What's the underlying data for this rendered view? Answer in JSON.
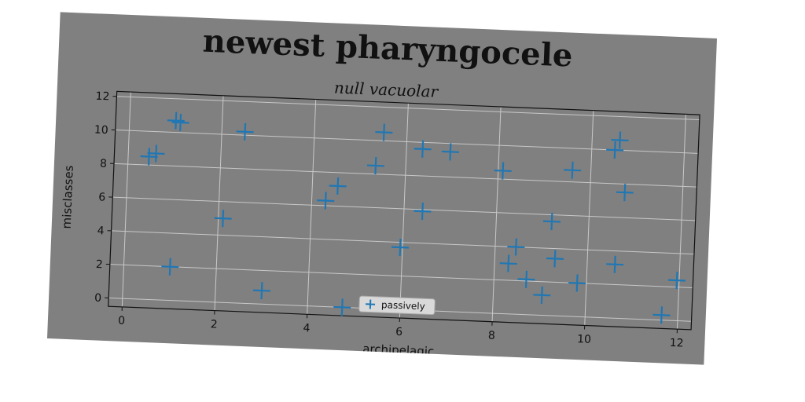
{
  "chart_data": {
    "type": "scatter",
    "title": "newest pharyngocele",
    "subtitle": "null vacuolar",
    "xlabel": "archipelagic",
    "ylabel": "misclasses",
    "xlim": [
      -0.3,
      12.3
    ],
    "ylim": [
      -0.5,
      12.3
    ],
    "xticks": [
      0,
      2,
      4,
      6,
      8,
      10,
      12
    ],
    "yticks": [
      0,
      2,
      4,
      6,
      8,
      10,
      12
    ],
    "grid": true,
    "legend_position": "lower center",
    "marker": "plus",
    "colors": {
      "series": "#1f77b4",
      "background": "#808080",
      "grid": "#c8c8c8"
    },
    "series": [
      {
        "name": "passively",
        "points": [
          {
            "x": 0.45,
            "y": 8.5
          },
          {
            "x": 0.6,
            "y": 8.7
          },
          {
            "x": 1.0,
            "y": 10.7
          },
          {
            "x": 1.1,
            "y": 10.6
          },
          {
            "x": 1.0,
            "y": 2.0
          },
          {
            "x": 2.1,
            "y": 5.0
          },
          {
            "x": 2.5,
            "y": 10.2
          },
          {
            "x": 3.0,
            "y": 0.8
          },
          {
            "x": 4.3,
            "y": 6.3
          },
          {
            "x": 4.55,
            "y": 7.2
          },
          {
            "x": 4.75,
            "y": 0.0
          },
          {
            "x": 5.35,
            "y": 8.5
          },
          {
            "x": 5.5,
            "y": 10.5
          },
          {
            "x": 5.95,
            "y": 3.7
          },
          {
            "x": 6.35,
            "y": 9.6
          },
          {
            "x": 6.4,
            "y": 5.9
          },
          {
            "x": 6.95,
            "y": 9.5
          },
          {
            "x": 8.1,
            "y": 8.5
          },
          {
            "x": 8.3,
            "y": 3.0
          },
          {
            "x": 8.45,
            "y": 4.0
          },
          {
            "x": 8.7,
            "y": 2.1
          },
          {
            "x": 9.05,
            "y": 1.2
          },
          {
            "x": 9.2,
            "y": 5.6
          },
          {
            "x": 9.3,
            "y": 3.4
          },
          {
            "x": 9.6,
            "y": 8.7
          },
          {
            "x": 9.8,
            "y": 2.0
          },
          {
            "x": 10.5,
            "y": 10.0
          },
          {
            "x": 10.6,
            "y": 10.6
          },
          {
            "x": 10.6,
            "y": 3.2
          },
          {
            "x": 10.75,
            "y": 7.5
          },
          {
            "x": 11.65,
            "y": 0.3
          },
          {
            "x": 11.95,
            "y": 2.4
          }
        ]
      }
    ]
  }
}
